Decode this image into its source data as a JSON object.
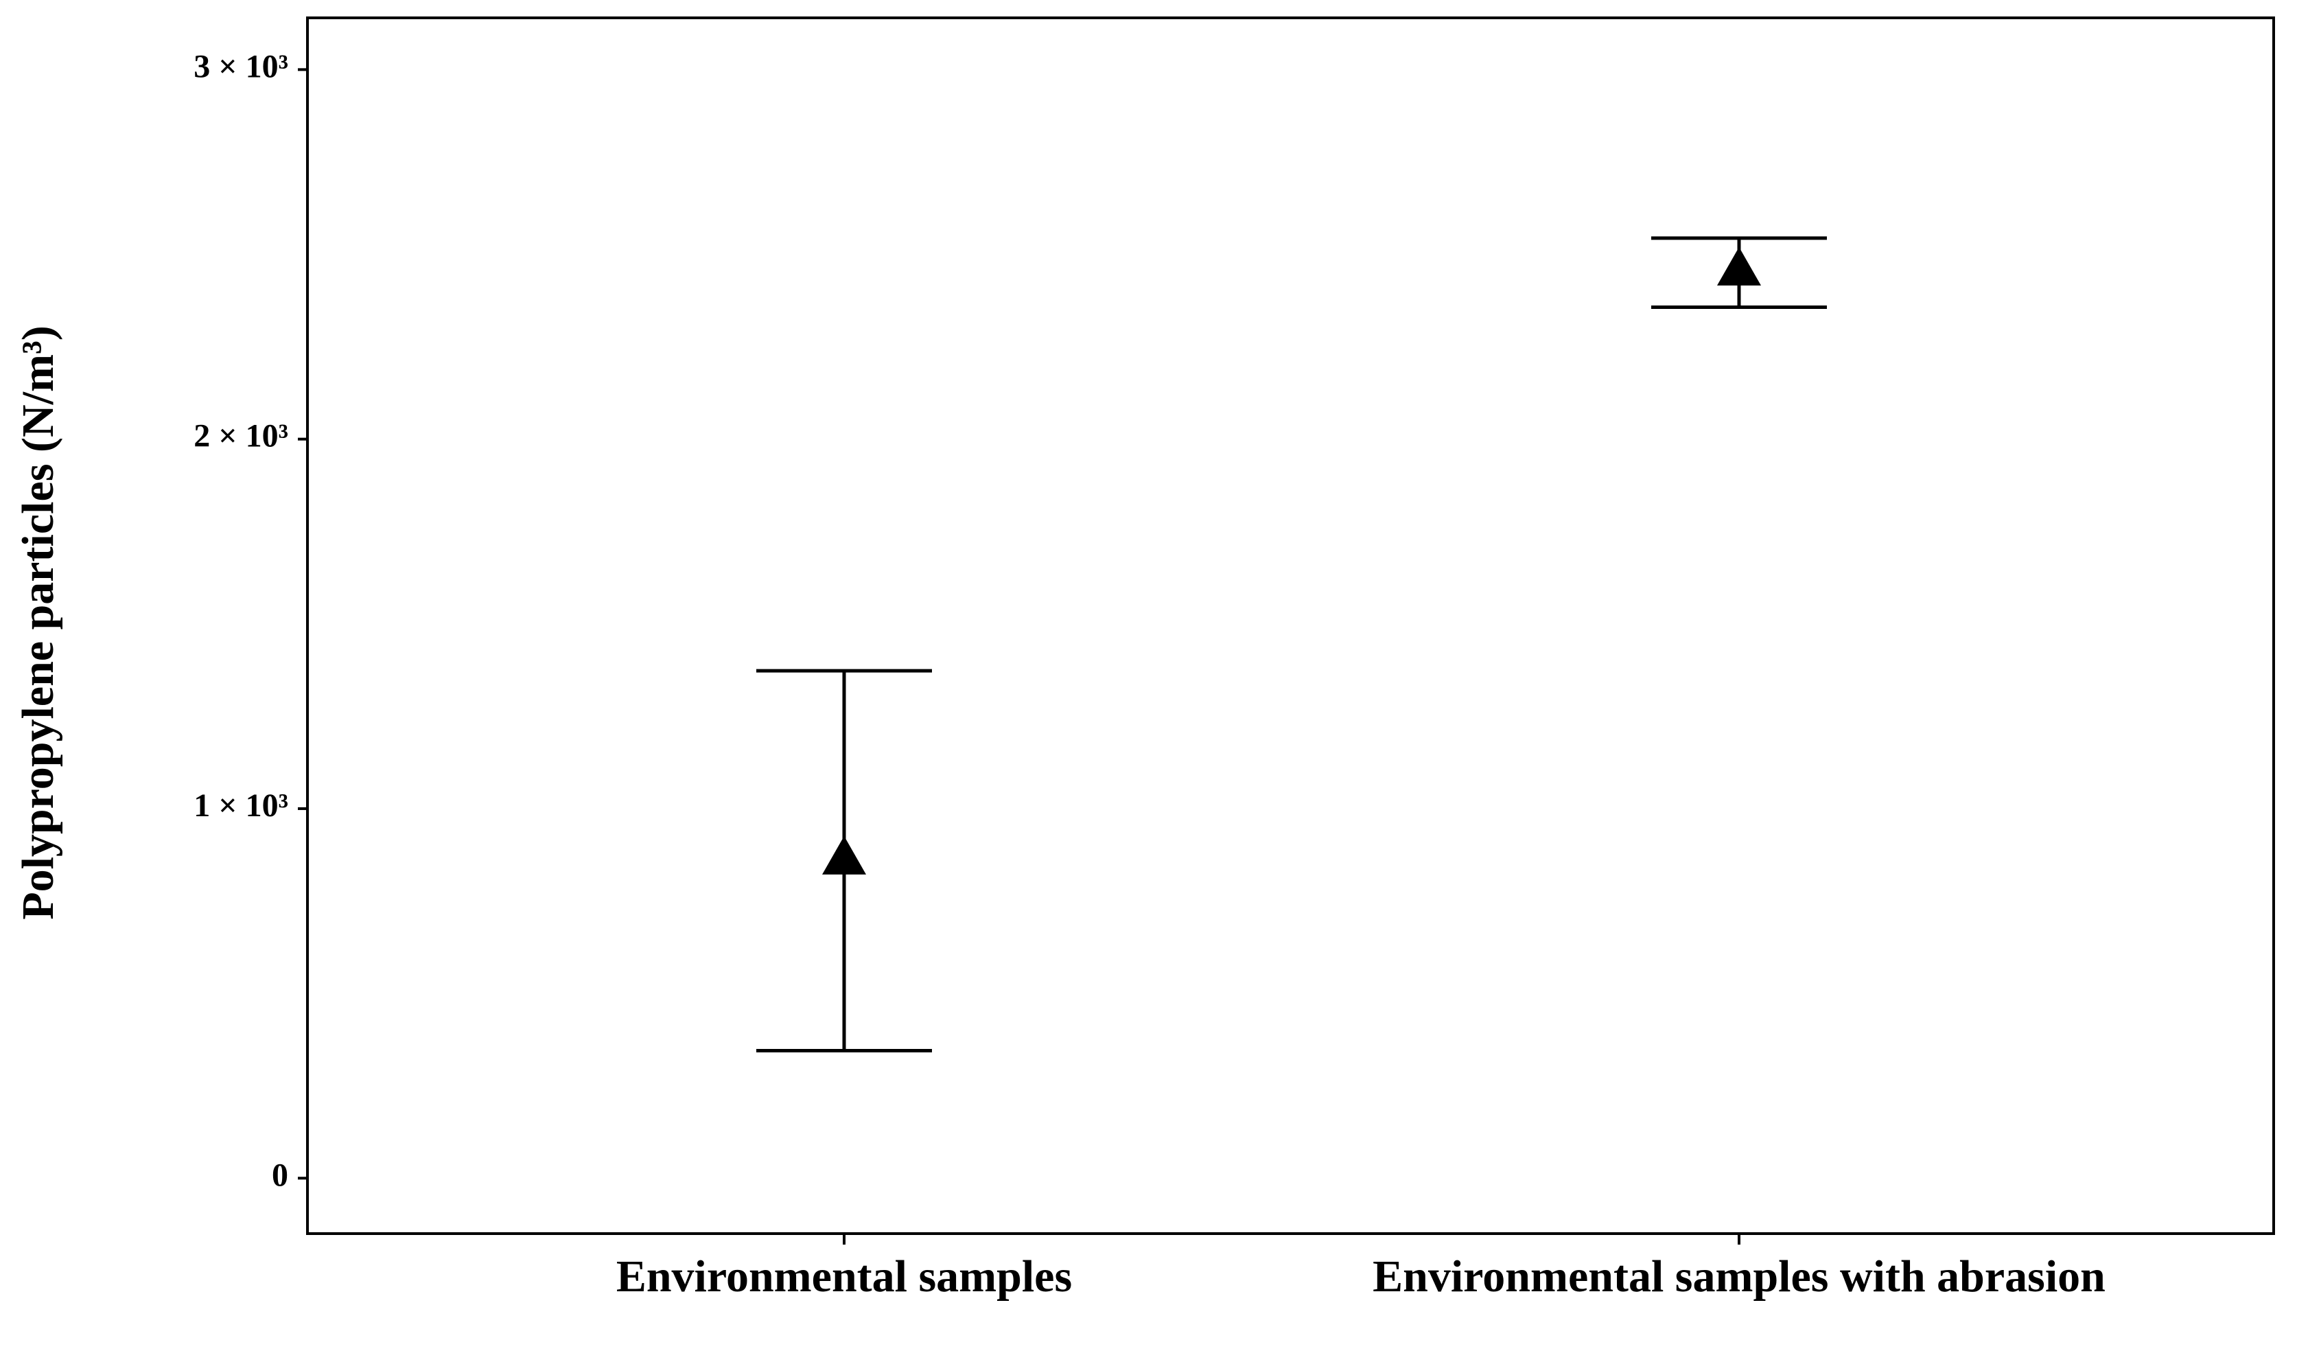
{
  "chart_data": {
    "type": "errorbar",
    "y_label": "Polypropylene particles (N/m³)",
    "categories": [
      "Environmental samples",
      "Environmental samples with abrasion"
    ],
    "values": [
      870,
      2464
    ],
    "lower": [
      345,
      2357
    ],
    "upper": [
      1373,
      2544
    ],
    "color": "#000000",
    "ylim": [
      -150,
      3140
    ],
    "yticks": [
      0,
      {
        "value": 1000,
        "label": "1 × 10³"
      },
      {
        "value": 2000,
        "label": "2 × 10³"
      },
      {
        "value": 3000,
        "label": "3 × 10³"
      }
    ],
    "grid": false
  }
}
